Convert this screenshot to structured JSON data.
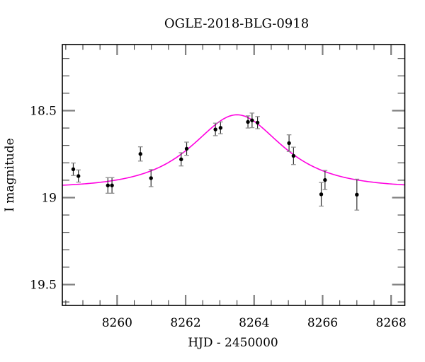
{
  "chart_data": {
    "type": "scatter",
    "title": "OGLE-2018-BLG-0918",
    "xlabel": "HJD - 2450000",
    "ylabel": "I magnitude",
    "xlim": [
      8258.4,
      8268.4
    ],
    "ylim_top_mag": 18.12,
    "ylim_bottom_mag": 19.62,
    "y_axis_inverted": true,
    "grid": false,
    "legend": null,
    "x_major_ticks": [
      8260,
      8262,
      8264,
      8266,
      8268
    ],
    "x_tick_labels": [
      "8260",
      "8262",
      "8264",
      "8266",
      "8268"
    ],
    "x_minor_step": 0.5,
    "y_major_ticks": [
      18.5,
      19,
      19.5
    ],
    "y_tick_labels": [
      "18.5",
      "19",
      "19.5"
    ],
    "y_minor_step": 0.1,
    "points": [
      {
        "t": 8258.72,
        "mag": 18.837,
        "err": 0.036
      },
      {
        "t": 8258.87,
        "mag": 18.876,
        "err": 0.035
      },
      {
        "t": 8259.73,
        "mag": 18.93,
        "err": 0.045
      },
      {
        "t": 8259.85,
        "mag": 18.93,
        "err": 0.045
      },
      {
        "t": 8260.68,
        "mag": 18.749,
        "err": 0.041
      },
      {
        "t": 8260.99,
        "mag": 18.888,
        "err": 0.049
      },
      {
        "t": 8261.87,
        "mag": 18.78,
        "err": 0.038
      },
      {
        "t": 8262.03,
        "mag": 18.719,
        "err": 0.038
      },
      {
        "t": 8262.87,
        "mag": 18.608,
        "err": 0.036
      },
      {
        "t": 8263.02,
        "mag": 18.599,
        "err": 0.034
      },
      {
        "t": 8263.82,
        "mag": 18.565,
        "err": 0.035
      },
      {
        "t": 8263.94,
        "mag": 18.556,
        "err": 0.042
      },
      {
        "t": 8264.1,
        "mag": 18.569,
        "err": 0.035
      },
      {
        "t": 8265.02,
        "mag": 18.687,
        "err": 0.048
      },
      {
        "t": 8265.15,
        "mag": 18.76,
        "err": 0.05
      },
      {
        "t": 8265.96,
        "mag": 18.981,
        "err": 0.068
      },
      {
        "t": 8266.07,
        "mag": 18.899,
        "err": 0.055
      },
      {
        "t": 8267.0,
        "mag": 18.983,
        "err": 0.089
      }
    ],
    "model_curve": {
      "model": "paczynski",
      "t0": 8263.5,
      "tE": 1.7,
      "u0": 0.85,
      "baseline_mag": 18.945,
      "peak_mag": 18.52
    },
    "colors": {
      "curve": "#ff00e0",
      "marker": "#000000",
      "error_bar": "#2e2e2e",
      "error_cap": "#909090",
      "frame": "#000000",
      "major_tick": "#7f7f7f",
      "minor_tick": "#3c3c3c",
      "text": "#000000",
      "background": "#ffffff"
    }
  }
}
